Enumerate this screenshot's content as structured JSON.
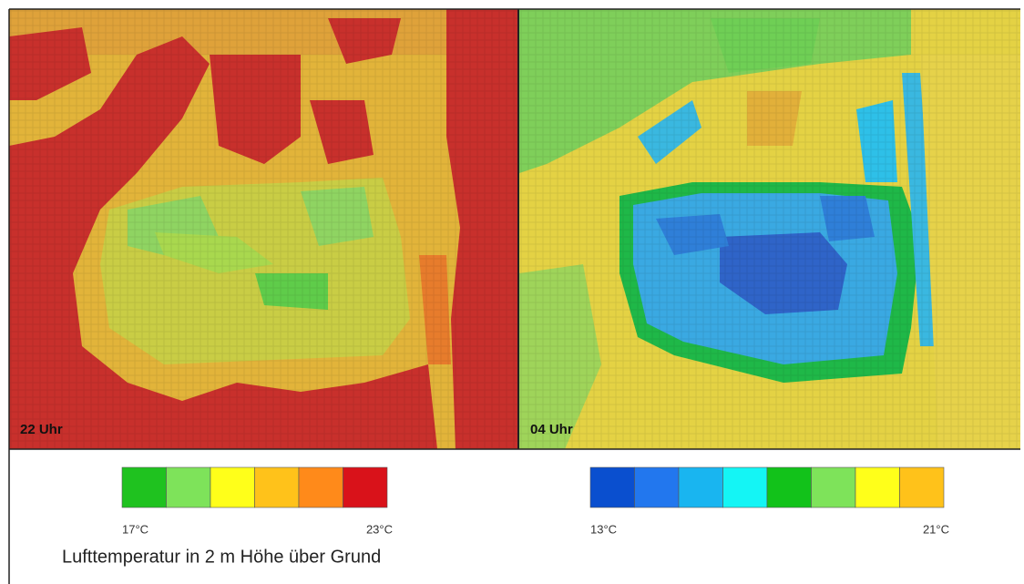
{
  "panels": [
    {
      "label": "22 Uhr"
    },
    {
      "label": "04 Uhr"
    }
  ],
  "legends": [
    {
      "colors": [
        "#1fc21f",
        "#7ee35a",
        "#ffff1a",
        "#ffc21a",
        "#ff8a1a",
        "#d9121a"
      ],
      "min_label": "17°C",
      "max_label": "23°C"
    },
    {
      "colors": [
        "#0a4fcf",
        "#2277ee",
        "#19b5f0",
        "#14f5f5",
        "#12c21a",
        "#7ee35a",
        "#ffff1a",
        "#ffc21a"
      ],
      "min_label": "13°C",
      "max_label": "21°C"
    }
  ],
  "caption": "Lufttemperatur in 2 m Höhe über Grund"
}
